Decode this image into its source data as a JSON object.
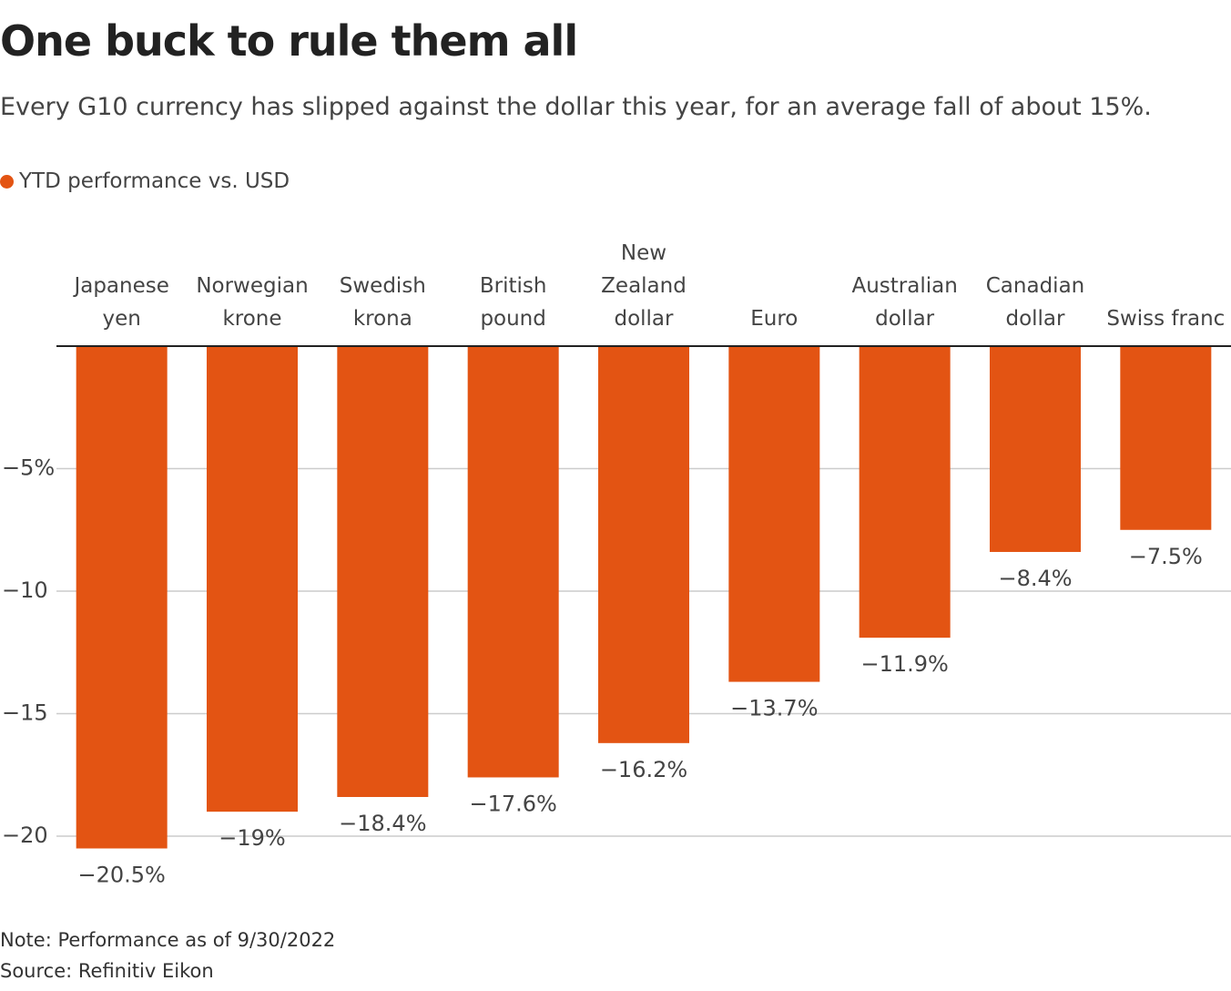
{
  "chart_data": {
    "type": "bar",
    "title": "One buck to rule them all",
    "subtitle": "Every G10 currency has slipped against the dollar this year, for an average fall of about 15%.",
    "legend": "YTD performance vs. USD",
    "categories": [
      "Japanese yen",
      "Norwegian krone",
      "Swedish krona",
      "British pound",
      "New Zealand dollar",
      "Euro",
      "Australian dollar",
      "Canadian dollar",
      "Swiss franc"
    ],
    "values": [
      -20.5,
      -19,
      -18.4,
      -17.6,
      -16.2,
      -13.7,
      -11.9,
      -8.4,
      -7.5
    ],
    "value_labels": [
      "−20.5%",
      "−19%",
      "−18.4%",
      "−17.6%",
      "−16.2%",
      "−13.7%",
      "−11.9%",
      "−8.4%",
      "−7.5%"
    ],
    "color": "#e35413",
    "ylim": [
      -20.5,
      0
    ],
    "yticks": [
      {
        "value": -5,
        "label": "−5%"
      },
      {
        "value": -10,
        "label": "−10"
      },
      {
        "value": -15,
        "label": "−15"
      },
      {
        "value": -20,
        "label": "−20"
      }
    ],
    "grid": true,
    "note": "Note: Performance as of 9/30/2022",
    "source": "Source: Refinitiv Eikon"
  }
}
